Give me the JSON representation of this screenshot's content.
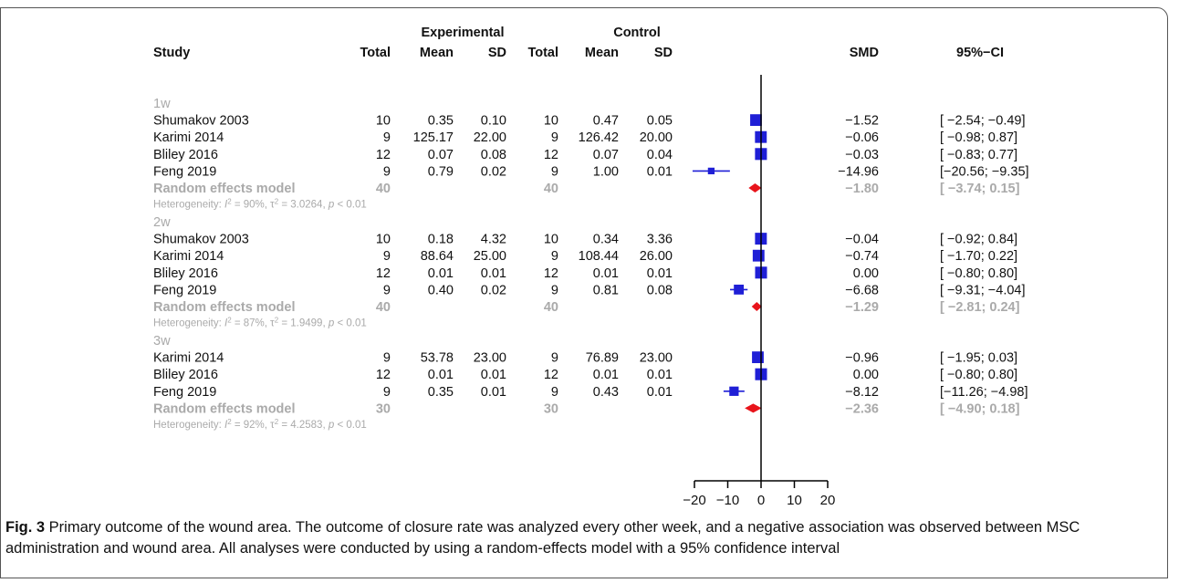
{
  "headers": {
    "study": "Study",
    "experimental": "Experimental",
    "control": "Control",
    "total": "Total",
    "mean": "Mean",
    "sd": "SD",
    "smd": "SMD",
    "ci": "95%−CI"
  },
  "chart_data": {
    "type": "forest",
    "x_ticks": [
      -20,
      -10,
      0,
      10,
      20
    ],
    "x_tick_labels": [
      "−20",
      "−10",
      "0",
      "10",
      "20"
    ],
    "xlim": [
      -22,
      22
    ],
    "null_line": 0,
    "subgroups": [
      {
        "label": "1w",
        "studies": [
          {
            "study": "Shumakov  2003",
            "e_total": "10",
            "e_mean": "0.35",
            "e_sd": "0.10",
            "c_total": "10",
            "c_mean": "0.47",
            "c_sd": "0.05",
            "smd": -1.52,
            "lower": -2.54,
            "upper": -0.49,
            "smd_text": "−1.52",
            "ci_text": "[ −2.54; −0.49]"
          },
          {
            "study": "Karimi 2014",
            "e_total": "9",
            "e_mean": "125.17",
            "e_sd": "22.00",
            "c_total": "9",
            "c_mean": "126.42",
            "c_sd": "20.00",
            "smd": -0.06,
            "lower": -0.98,
            "upper": 0.87,
            "smd_text": "−0.06",
            "ci_text": "[ −0.98;  0.87]"
          },
          {
            "study": "Bliley  2016",
            "e_total": "12",
            "e_mean": "0.07",
            "e_sd": "0.08",
            "c_total": "12",
            "c_mean": "0.07",
            "c_sd": "0.04",
            "smd": -0.03,
            "lower": -0.83,
            "upper": 0.77,
            "smd_text": "−0.03",
            "ci_text": "[ −0.83;  0.77]"
          },
          {
            "study": "Feng 2019",
            "e_total": "9",
            "e_mean": "0.79",
            "e_sd": "0.02",
            "c_total": "9",
            "c_mean": "1.00",
            "c_sd": "0.01",
            "smd": -14.96,
            "lower": -20.56,
            "upper": -9.35,
            "smd_text": "−14.96",
            "ci_text": "[−20.56; −9.35]"
          }
        ],
        "random": {
          "label": "Random effects model",
          "e_total": "40",
          "c_total": "40",
          "smd": -1.8,
          "lower": -3.74,
          "upper": 0.15,
          "smd_text": "−1.80",
          "ci_text": "[ −3.74;  0.15]"
        },
        "heterogeneity": {
          "prefix": "Heterogeneity: ",
          "i2_symbol": "I",
          "i2_value": " = 90%, ",
          "tau_symbol": "τ",
          "tau_value": " = 3.0264, ",
          "p_symbol": "p",
          "p_value": " < 0.01"
        }
      },
      {
        "label": "2w",
        "studies": [
          {
            "study": "Shumakov  2003",
            "e_total": "10",
            "e_mean": "0.18",
            "e_sd": "4.32",
            "c_total": "10",
            "c_mean": "0.34",
            "c_sd": "3.36",
            "smd": -0.04,
            "lower": -0.92,
            "upper": 0.84,
            "smd_text": "−0.04",
            "ci_text": "[ −0.92;  0.84]"
          },
          {
            "study": "Karimi 2014",
            "e_total": "9",
            "e_mean": "88.64",
            "e_sd": "25.00",
            "c_total": "9",
            "c_mean": "108.44",
            "c_sd": "26.00",
            "smd": -0.74,
            "lower": -1.7,
            "upper": 0.22,
            "smd_text": "−0.74",
            "ci_text": "[ −1.70;  0.22]"
          },
          {
            "study": "Bliley  2016",
            "e_total": "12",
            "e_mean": "0.01",
            "e_sd": "0.01",
            "c_total": "12",
            "c_mean": "0.01",
            "c_sd": "0.01",
            "smd": 0.0,
            "lower": -0.8,
            "upper": 0.8,
            "smd_text": "0.00",
            "ci_text": "[ −0.80;  0.80]"
          },
          {
            "study": "Feng 2019",
            "e_total": "9",
            "e_mean": "0.40",
            "e_sd": "0.02",
            "c_total": "9",
            "c_mean": "0.81",
            "c_sd": "0.08",
            "smd": -6.68,
            "lower": -9.31,
            "upper": -4.04,
            "smd_text": "−6.68",
            "ci_text": "[ −9.31; −4.04]"
          }
        ],
        "random": {
          "label": "Random effects model",
          "e_total": "40",
          "c_total": "40",
          "smd": -1.29,
          "lower": -2.81,
          "upper": 0.24,
          "smd_text": "−1.29",
          "ci_text": "[ −2.81;  0.24]"
        },
        "heterogeneity": {
          "prefix": "Heterogeneity: ",
          "i2_symbol": "I",
          "i2_value": " = 87%, ",
          "tau_symbol": "τ",
          "tau_value": " = 1.9499, ",
          "p_symbol": "p",
          "p_value": " < 0.01"
        }
      },
      {
        "label": "3w",
        "studies": [
          {
            "study": "Karimi 2014",
            "e_total": "9",
            "e_mean": "53.78",
            "e_sd": "23.00",
            "c_total": "9",
            "c_mean": "76.89",
            "c_sd": "23.00",
            "smd": -0.96,
            "lower": -1.95,
            "upper": 0.03,
            "smd_text": "−0.96",
            "ci_text": "[ −1.95;  0.03]"
          },
          {
            "study": "Bliley  2016",
            "e_total": "12",
            "e_mean": "0.01",
            "e_sd": "0.01",
            "c_total": "12",
            "c_mean": "0.01",
            "c_sd": "0.01",
            "smd": 0.0,
            "lower": -0.8,
            "upper": 0.8,
            "smd_text": "0.00",
            "ci_text": "[ −0.80;  0.80]"
          },
          {
            "study": "Feng 2019",
            "e_total": "9",
            "e_mean": "0.35",
            "e_sd": "0.01",
            "c_total": "9",
            "c_mean": "0.43",
            "c_sd": "0.01",
            "smd": -8.12,
            "lower": -11.26,
            "upper": -4.98,
            "smd_text": "−8.12",
            "ci_text": "[−11.26; −4.98]"
          }
        ],
        "random": {
          "label": "Random effects model",
          "e_total": "30",
          "c_total": "30",
          "smd": -2.36,
          "lower": -4.9,
          "upper": 0.18,
          "smd_text": "−2.36",
          "ci_text": "[ −4.90;  0.18]"
        },
        "heterogeneity": {
          "prefix": "Heterogeneity: ",
          "i2_symbol": "I",
          "i2_value": " = 92%, ",
          "tau_symbol": "τ",
          "tau_value": " = 4.2583, ",
          "p_symbol": "p",
          "p_value": " < 0.01"
        }
      }
    ]
  },
  "colors": {
    "study_marker": "#1f1fd6",
    "diamond": "#e8141b",
    "summary_text": "#aaaaaa",
    "axis": "#000000"
  },
  "caption": {
    "label": "Fig. 3",
    "text": " Primary outcome of the wound area. The outcome of closure rate was analyzed every other week, and a negative association was observed between MSC administration and wound area. All analyses were conducted by using a random-effects model with a 95% confidence interval"
  }
}
